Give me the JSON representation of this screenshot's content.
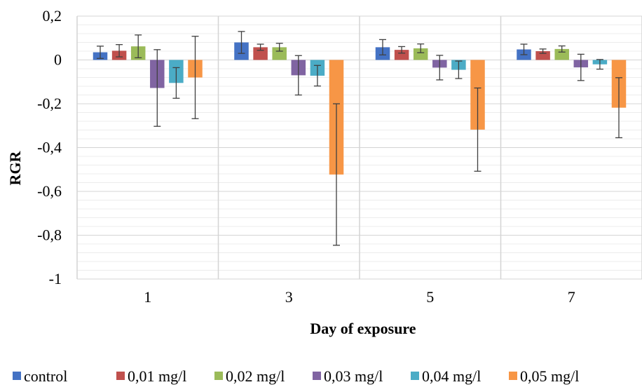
{
  "chart_data": {
    "type": "bar",
    "xlabel": "Day of exposure",
    "ylabel": "RGR",
    "ylim": [
      -1,
      0.2
    ],
    "yticks": [
      0.2,
      0,
      -0.2,
      -0.4,
      -0.6,
      -0.8,
      -1
    ],
    "ytick_labels": [
      "0,2",
      "0",
      "-0,2",
      "-0,4",
      "-0,6",
      "-0,8",
      "-1"
    ],
    "minor_grid_step": 0.04,
    "grid": true,
    "legend_position": "bottom",
    "categories": [
      "1",
      "3",
      "5",
      "7"
    ],
    "series": [
      {
        "name": "control",
        "color": "#4472C4",
        "values": [
          0.035,
          0.08,
          0.058,
          0.048
        ],
        "errors": [
          0.028,
          0.05,
          0.035,
          0.024
        ]
      },
      {
        "name": "0,01 mg/l",
        "color": "#C0504D",
        "values": [
          0.042,
          0.058,
          0.046,
          0.04
        ],
        "errors": [
          0.028,
          0.014,
          0.015,
          0.01
        ]
      },
      {
        "name": "0,02 mg/l",
        "color": "#9BBB59",
        "values": [
          0.062,
          0.058,
          0.053,
          0.05
        ],
        "errors": [
          0.052,
          0.018,
          0.02,
          0.014
        ]
      },
      {
        "name": "0,03 mg/l",
        "color": "#8064A2",
        "values": [
          -0.128,
          -0.07,
          -0.035,
          -0.034
        ],
        "errors": [
          0.175,
          0.09,
          0.056,
          0.06
        ]
      },
      {
        "name": "0,04 mg/l",
        "color": "#4BACC6",
        "values": [
          -0.105,
          -0.072,
          -0.045,
          -0.02
        ],
        "errors": [
          0.07,
          0.047,
          0.04,
          0.022
        ]
      },
      {
        "name": "0,05 mg/l",
        "color": "#F79646",
        "values": [
          -0.08,
          -0.523,
          -0.318,
          -0.218
        ],
        "errors": [
          0.188,
          0.323,
          0.19,
          0.137
        ]
      }
    ]
  }
}
